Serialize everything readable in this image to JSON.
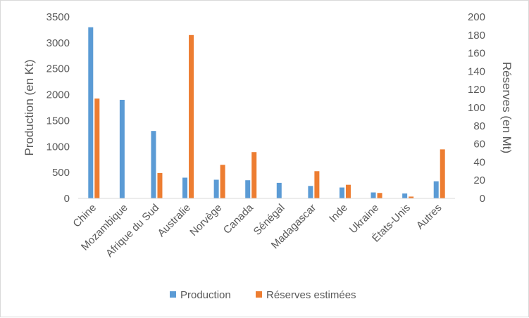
{
  "chart_data": {
    "type": "bar",
    "categories": [
      "Chine",
      "Mozambique",
      "Afrique du Sud",
      "Australie",
      "Norvège",
      "Canada",
      "Sénégal",
      "Madagascar",
      "Inde",
      "Ukraine",
      "États-Unis",
      "Autres"
    ],
    "series": [
      {
        "name": "Production",
        "axis": "left",
        "color": "#5b9bd5",
        "values": [
          3300,
          1900,
          1300,
          400,
          360,
          350,
          300,
          240,
          210,
          115,
          95,
          330
        ]
      },
      {
        "name": "Réserves estimées",
        "axis": "right",
        "color": "#ed7d31",
        "values": [
          110,
          0,
          28,
          180,
          37,
          51,
          0,
          30,
          15,
          6,
          2,
          54
        ]
      }
    ],
    "ylabel": "Production (en Kt)",
    "ylim": [
      0,
      3500
    ],
    "yticks": [
      "0",
      "500",
      "1000",
      "1500",
      "2000",
      "2500",
      "3000",
      "3500"
    ],
    "y2label": "Réserves (en Mt)",
    "y2lim": [
      0,
      200
    ],
    "y2ticks": [
      "0",
      "20",
      "40",
      "60",
      "80",
      "100",
      "120",
      "140",
      "160",
      "180",
      "200"
    ],
    "grid": false,
    "legend_position": "bottom"
  }
}
